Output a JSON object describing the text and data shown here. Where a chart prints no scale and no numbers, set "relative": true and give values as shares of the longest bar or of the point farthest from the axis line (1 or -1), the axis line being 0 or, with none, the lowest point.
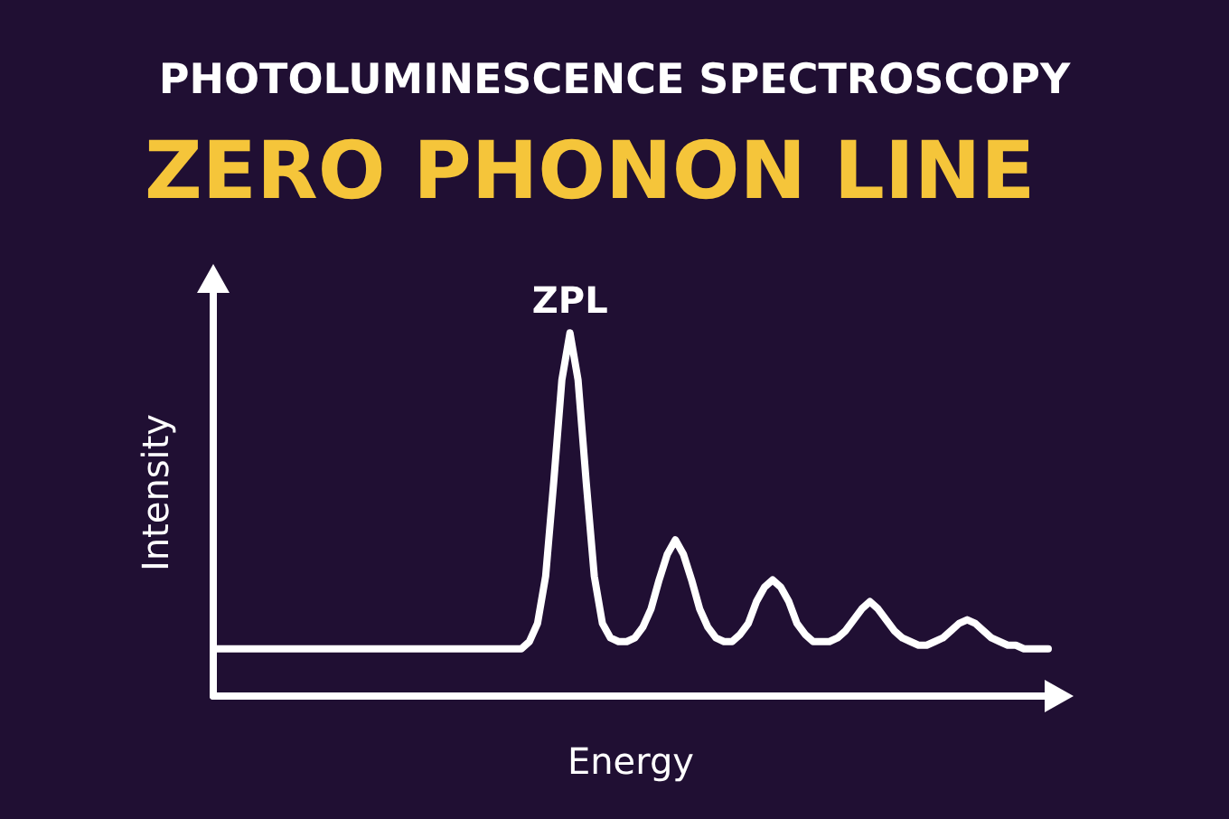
{
  "chart_data": {
    "type": "line",
    "relative": true,
    "title": "ZERO PHONON LINE",
    "subtitle": "PHOTOLUMINESCENCE SPECTROSCOPY",
    "xlabel": "Energy",
    "ylabel": "Intensity",
    "annotations": [
      {
        "text": "ZPL",
        "y": 1
      }
    ],
    "categories": [
      null,
      null,
      null,
      null,
      null,
      null,
      null,
      null,
      null,
      null,
      null,
      null,
      null,
      null,
      null,
      null,
      null,
      null,
      null,
      null,
      null,
      null,
      null,
      null,
      null,
      null,
      null,
      null,
      null,
      null,
      null,
      null,
      null,
      null,
      null,
      null,
      null,
      null,
      null,
      null,
      null,
      null,
      null,
      null,
      null,
      null,
      null,
      null,
      null,
      null,
      null,
      null,
      null,
      null,
      null,
      null,
      null,
      null,
      null,
      null,
      null,
      null,
      null,
      null,
      null,
      null,
      null,
      null,
      null,
      null,
      null,
      null,
      null,
      null,
      null,
      null,
      null,
      null,
      null,
      null,
      null,
      null,
      null,
      null,
      null,
      null,
      null,
      null,
      null,
      null,
      null,
      null,
      null,
      null,
      null,
      null,
      null,
      null,
      null,
      null,
      null,
      null,
      null,
      null
    ],
    "series": [
      {
        "color": "#ffffff",
        "values": [
          0.13,
          0.13,
          0.13,
          0.13,
          0.13,
          0.13,
          0.13,
          0.13,
          0.13,
          0.13,
          0.13,
          0.13,
          0.13,
          0.13,
          0.13,
          0.13,
          0.13,
          0.13,
          0.13,
          0.13,
          0.13,
          0.13,
          0.13,
          0.13,
          0.13,
          0.13,
          0.13,
          0.13,
          0.13,
          0.13,
          0.13,
          0.13,
          0.13,
          0.13,
          0.13,
          0.13,
          0.13,
          0.13,
          0.13,
          0.15,
          0.2,
          0.33,
          0.59,
          0.87,
          1,
          0.87,
          0.59,
          0.33,
          0.2,
          0.16,
          0.15,
          0.15,
          0.16,
          0.19,
          0.24,
          0.32,
          0.39,
          0.43,
          0.39,
          0.32,
          0.24,
          0.19,
          0.16,
          0.15,
          0.15,
          0.17,
          0.2,
          0.26,
          0.3,
          0.32,
          0.3,
          0.26,
          0.2,
          0.17,
          0.15,
          0.15,
          0.15,
          0.16,
          0.18,
          0.21,
          0.24,
          0.26,
          0.24,
          0.21,
          0.18,
          0.16,
          0.15,
          0.14,
          0.14,
          0.15,
          0.16,
          0.18,
          0.2,
          0.21,
          0.2,
          0.18,
          0.16,
          0.15,
          0.14,
          0.14,
          0.13,
          0.13,
          0.13,
          0.13
        ]
      }
    ],
    "grid": false,
    "line_style": "solid"
  }
}
